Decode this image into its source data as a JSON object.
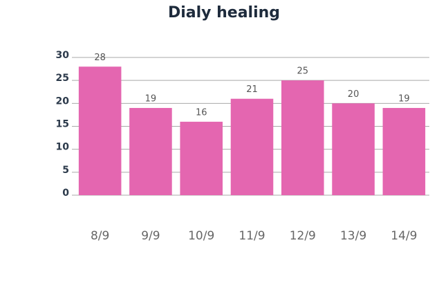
{
  "chart_data": {
    "type": "bar",
    "title": "Dialy healing",
    "categories": [
      "8/9",
      "9/9",
      "10/9",
      "11/9",
      "12/9",
      "13/9",
      "14/9"
    ],
    "values": [
      28,
      19,
      16,
      21,
      25,
      20,
      19
    ],
    "color": "#e466b0",
    "ylim": [
      0,
      30
    ],
    "yticks": [
      0,
      5,
      10,
      15,
      20,
      25,
      30
    ],
    "grid": true
  }
}
